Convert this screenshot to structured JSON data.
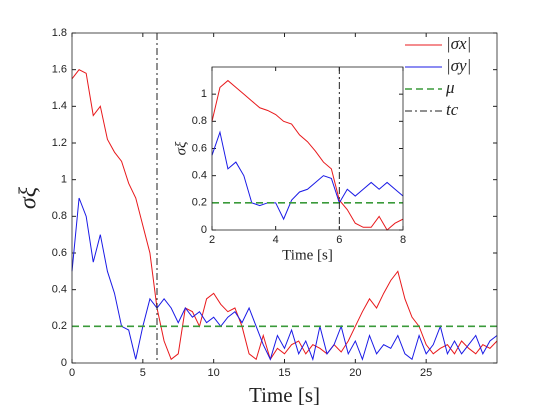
{
  "chart_data": [
    {
      "type": "line",
      "xlabel": "Time [s]",
      "ylabel": "σξ",
      "xlim": [
        0,
        30
      ],
      "ylim": [
        0,
        1.8
      ],
      "xticks": [
        0,
        5,
        10,
        15,
        20,
        25
      ],
      "yticks": [
        0,
        0.2,
        0.4,
        0.6,
        0.8,
        1,
        1.2,
        1.4,
        1.6,
        1.8
      ],
      "legend": "top-right",
      "x": [
        0,
        0.5,
        1,
        1.5,
        2,
        2.5,
        3,
        3.5,
        4,
        4.5,
        5,
        5.5,
        6,
        6.5,
        7,
        7.5,
        8,
        8.5,
        9,
        9.5,
        10,
        10.5,
        11,
        11.5,
        12,
        12.5,
        13,
        13.5,
        14,
        14.5,
        15,
        15.5,
        16,
        16.5,
        17,
        17.5,
        18,
        18.5,
        19,
        19.5,
        20,
        20.5,
        21,
        21.5,
        22,
        22.5,
        23,
        23.5,
        24,
        24.5,
        25,
        25.5,
        26,
        26.5,
        27,
        27.5,
        28,
        28.5,
        29,
        29.5,
        30
      ],
      "series": [
        {
          "name": "|σx|",
          "color": "#e8191c",
          "values": [
            1.55,
            1.6,
            1.58,
            1.35,
            1.4,
            1.22,
            1.15,
            1.1,
            0.98,
            0.9,
            0.75,
            0.6,
            0.3,
            0.12,
            0.02,
            0.05,
            0.3,
            0.28,
            0.2,
            0.35,
            0.38,
            0.32,
            0.28,
            0.3,
            0.2,
            0.05,
            0.02,
            0.15,
            0.02,
            0.08,
            0.05,
            0.1,
            0.12,
            0.05,
            0.1,
            0.08,
            0.05,
            0.1,
            0.06,
            0.12,
            0.2,
            0.28,
            0.35,
            0.3,
            0.38,
            0.45,
            0.5,
            0.35,
            0.25,
            0.2,
            0.1,
            0.05,
            0.08,
            0.1,
            0.05,
            0.12,
            0.08,
            0.05,
            0.1,
            0.08,
            0.12
          ]
        },
        {
          "name": "|σy|",
          "color": "#1a1ae6",
          "values": [
            0.5,
            0.9,
            0.8,
            0.55,
            0.7,
            0.5,
            0.38,
            0.2,
            0.18,
            0.02,
            0.2,
            0.35,
            0.3,
            0.35,
            0.3,
            0.22,
            0.3,
            0.25,
            0.28,
            0.22,
            0.25,
            0.2,
            0.25,
            0.28,
            0.22,
            0.3,
            0.2,
            0.1,
            0.02,
            0.15,
            0.08,
            0.18,
            0.05,
            0.12,
            0.02,
            0.2,
            0.05,
            0.1,
            0.2,
            0.05,
            0.12,
            0.02,
            0.15,
            0.05,
            0.1,
            0.08,
            0.15,
            0.05,
            0.02,
            0.15,
            0.05,
            0.1,
            0.2,
            0.05,
            0.12,
            0.05,
            0.1,
            0.15,
            0.05,
            0.12,
            0.15
          ]
        }
      ],
      "hlines": [
        {
          "name": "μ",
          "value": 0.2,
          "color": "#3a9a3a"
        }
      ],
      "vlines": [
        {
          "name": "tc",
          "value": 6,
          "color": "#222222"
        }
      ]
    },
    {
      "type": "line",
      "xlabel": "Time [s]",
      "ylabel": "σξ",
      "xlim": [
        2,
        8
      ],
      "ylim": [
        0,
        1.2
      ],
      "xticks": [
        2,
        4,
        6,
        8
      ],
      "yticks": [
        0,
        0.2,
        0.4,
        0.6,
        0.8,
        1
      ],
      "x": [
        2,
        2.25,
        2.5,
        2.75,
        3,
        3.25,
        3.5,
        3.75,
        4,
        4.25,
        4.5,
        4.75,
        5,
        5.25,
        5.5,
        5.75,
        6,
        6.25,
        6.5,
        6.75,
        7,
        7.25,
        7.5,
        7.75,
        8
      ],
      "series": [
        {
          "color": "#e8191c",
          "values": [
            0.8,
            1.05,
            1.1,
            1.05,
            1.0,
            0.95,
            0.9,
            0.88,
            0.85,
            0.8,
            0.78,
            0.7,
            0.65,
            0.58,
            0.5,
            0.45,
            0.22,
            0.15,
            0.05,
            0.02,
            0.02,
            0.1,
            0.0,
            0.05,
            0.08
          ]
        },
        {
          "color": "#1a1ae6",
          "values": [
            0.55,
            0.72,
            0.45,
            0.5,
            0.4,
            0.2,
            0.18,
            0.2,
            0.2,
            0.08,
            0.22,
            0.28,
            0.3,
            0.35,
            0.4,
            0.38,
            0.2,
            0.3,
            0.25,
            0.3,
            0.35,
            0.3,
            0.35,
            0.3,
            0.25
          ]
        }
      ],
      "hlines": [
        {
          "value": 0.2,
          "color": "#3a9a3a"
        }
      ],
      "vlines": [
        {
          "value": 6,
          "color": "#222222"
        }
      ]
    }
  ]
}
